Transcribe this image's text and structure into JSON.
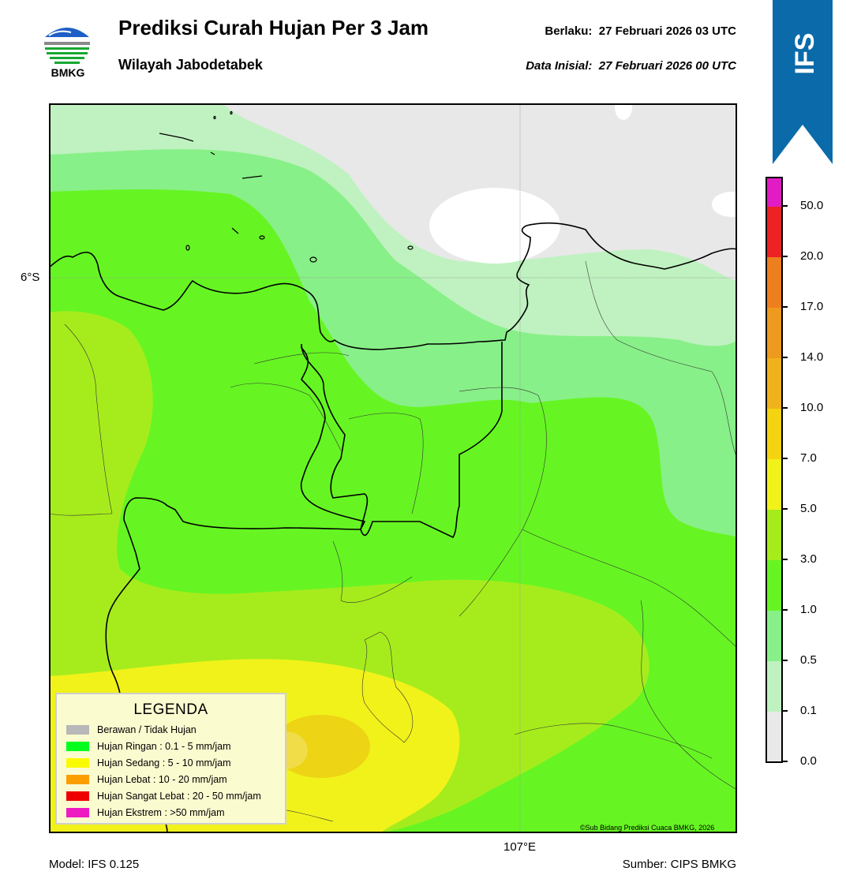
{
  "header": {
    "title": "Prediksi Curah Hujan Per 3 Jam",
    "subtitle": "Wilayah Jabodetabek",
    "valid_label": "Berlaku:",
    "valid_time": "27 Februari 2026 03 UTC",
    "init_label": "Data Inisial:",
    "init_time": "27 Februari 2026 00 UTC"
  },
  "logo": {
    "text": "BMKG"
  },
  "ribbon": {
    "text": "IFS",
    "color": "#0a6aaa"
  },
  "axes": {
    "lat_label": "6°S",
    "lon_label": "107°E"
  },
  "footer": {
    "model": "Model: IFS 0.125",
    "source": "Sumber: CIPS BMKG",
    "copyright": "©Sub Bidang Prediksi Cuaca BMKG, 2026"
  },
  "legend": {
    "title": "LEGENDA",
    "items": [
      {
        "label": "Berawan / Tidak Hujan",
        "color": "#b8b8b8"
      },
      {
        "label": "Hujan Ringan : 0.1 - 5 mm/jam",
        "color": "#00ff1e"
      },
      {
        "label": "Hujan Sedang : 5 - 10 mm/jam",
        "color": "#fbfb00"
      },
      {
        "label": "Hujan Lebat : 10 - 20 mm/jam",
        "color": "#fb9e00"
      },
      {
        "label": "Hujan Sangat Lebat : 20 - 50 mm/jam",
        "color": "#ee0000"
      },
      {
        "label": "Hujan Ekstrem : >50 mm/jam",
        "color": "#ee1bc2"
      }
    ]
  },
  "colorbar": {
    "tick_labels": [
      "0.0",
      "0.1",
      "0.5",
      "1.0",
      "3.0",
      "5.0",
      "7.0",
      "10.0",
      "14.0",
      "17.0",
      "20.0",
      "50.0"
    ],
    "colors": [
      "#e9e9e9",
      "#bff2c0",
      "#88f088",
      "#66f522",
      "#a6ec1c",
      "#f1f21a",
      "#f4d411",
      "#f0b21c",
      "#ee9a1e",
      "#ee7f1e",
      "#ee5e1e",
      "#ee2222",
      "#e21cc4"
    ]
  },
  "map": {
    "colors": {
      "none": "#e8e8e8",
      "very_light": "#bff2c0",
      "light": "#88f088",
      "moderate": "#66f522",
      "heavier": "#a6ec1c",
      "yellow": "#f1f21a",
      "gold": "#edd414",
      "white": "#ffffff"
    }
  }
}
